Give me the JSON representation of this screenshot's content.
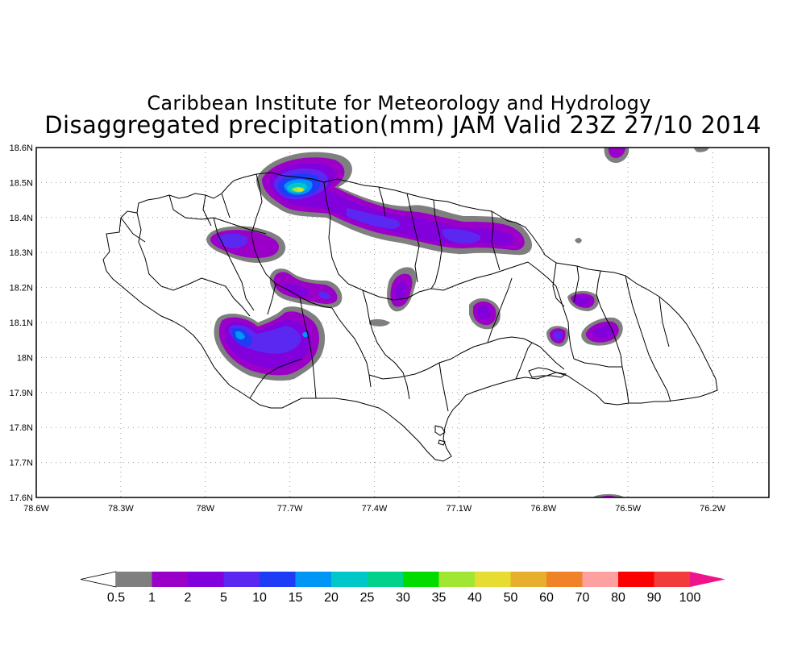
{
  "title": {
    "line1": "Caribbean Institute for Meteorology and Hydrology",
    "line2": "Disaggregated precipitation(mm) JAM Valid 23Z 27/10 2014"
  },
  "map": {
    "lat_labels": [
      "18.6N",
      "18.5N",
      "18.4N",
      "18.3N",
      "18.2N",
      "18.1N",
      "18N",
      "17.9N",
      "17.8N",
      "17.7N",
      "17.6N"
    ],
    "lat_values": [
      18.6,
      18.5,
      18.4,
      18.3,
      18.2,
      18.1,
      18.0,
      17.9,
      17.8,
      17.7,
      17.6
    ],
    "lon_labels": [
      "78.6W",
      "78.3W",
      "78W",
      "77.7W",
      "77.4W",
      "77.1W",
      "76.8W",
      "76.5W",
      "76.2W"
    ],
    "lon_values": [
      -78.6,
      -78.3,
      -78.0,
      -77.7,
      -77.4,
      -77.1,
      -76.8,
      -76.5,
      -76.2
    ],
    "lat_range": [
      17.6,
      18.6
    ],
    "lon_range": [
      -78.6,
      -76.0
    ],
    "grid": "dotted"
  },
  "colorbar": {
    "labels": [
      "0.5",
      "1",
      "2",
      "5",
      "10",
      "15",
      "20",
      "25",
      "30",
      "35",
      "40",
      "50",
      "60",
      "70",
      "80",
      "90",
      "100"
    ],
    "colors": [
      "#7f7f7f",
      "#9b00c8",
      "#8200dc",
      "#5a28f0",
      "#1e3cf5",
      "#0096f5",
      "#00c8c8",
      "#00d28c",
      "#00dc00",
      "#a0e632",
      "#e6dc32",
      "#e6af2d",
      "#f08228",
      "#ffa0a0",
      "#fa0000",
      "#f03c3c"
    ],
    "under_color": "#ffffff",
    "over_color": "#f0148c"
  }
}
